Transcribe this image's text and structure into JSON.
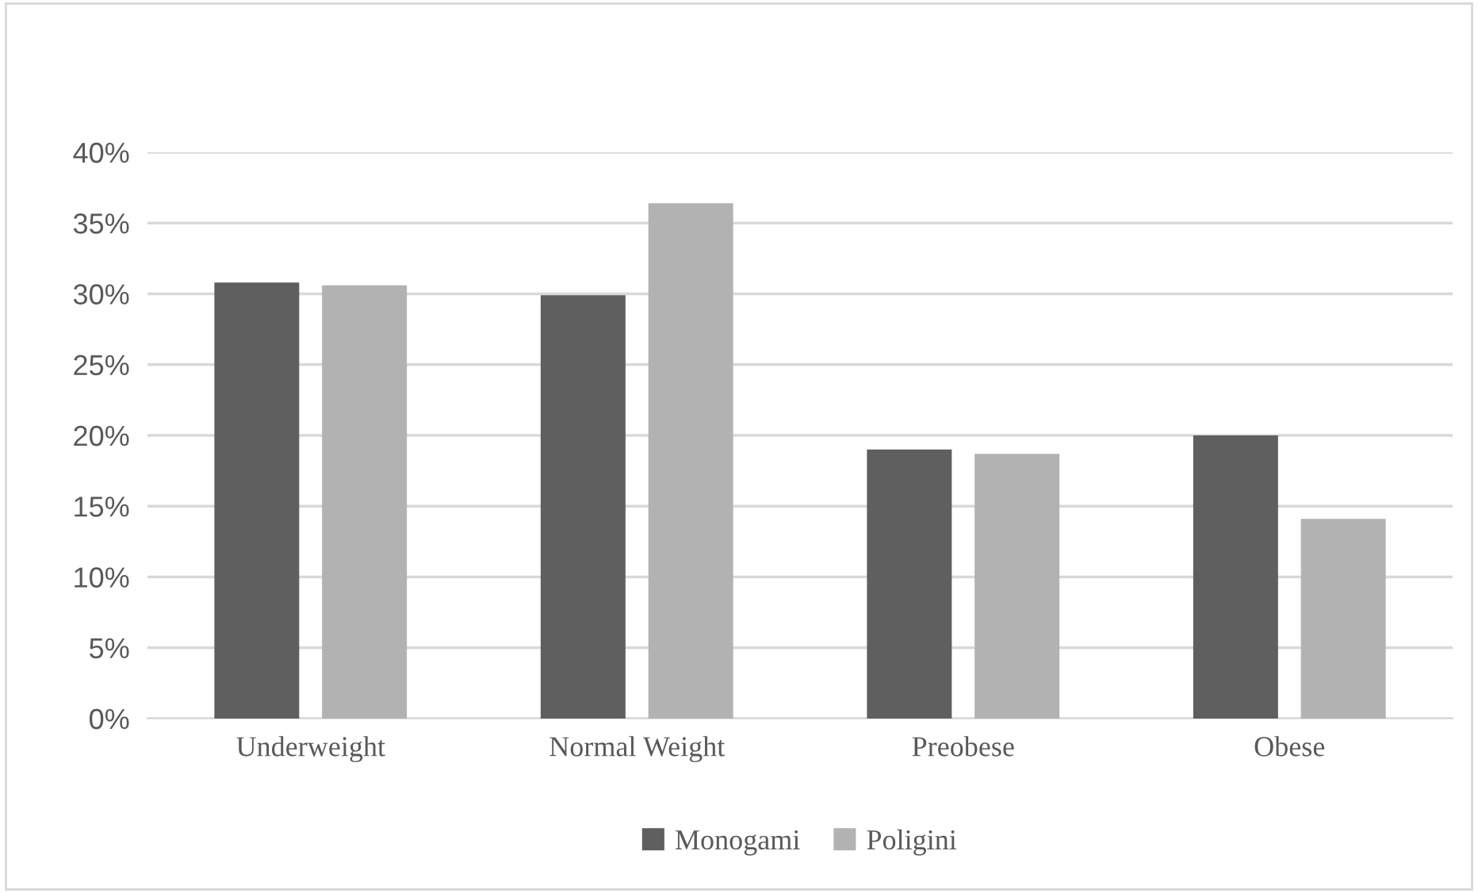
{
  "chart_data": {
    "type": "bar",
    "categories": [
      "Underweight",
      "Normal Weight",
      "Preobese",
      "Obese"
    ],
    "series": [
      {
        "name": "Monogami",
        "color": "#5f5f5f",
        "values": [
          30.8,
          29.9,
          19.0,
          20.0
        ]
      },
      {
        "name": "Poligini",
        "color": "#b2b2b2",
        "values": [
          30.6,
          36.4,
          18.7,
          14.1
        ]
      }
    ],
    "ylim": [
      0,
      40
    ],
    "yticks": [
      {
        "value": 0,
        "label": "0%"
      },
      {
        "value": 5,
        "label": "5%"
      },
      {
        "value": 10,
        "label": "10%"
      },
      {
        "value": 15,
        "label": "15%"
      },
      {
        "value": 20,
        "label": "20%"
      },
      {
        "value": 25,
        "label": "25%"
      },
      {
        "value": 30,
        "label": "30%"
      },
      {
        "value": 35,
        "label": "35%"
      },
      {
        "value": 40,
        "label": "40%"
      }
    ],
    "grid": "y",
    "legend": "bottom"
  }
}
